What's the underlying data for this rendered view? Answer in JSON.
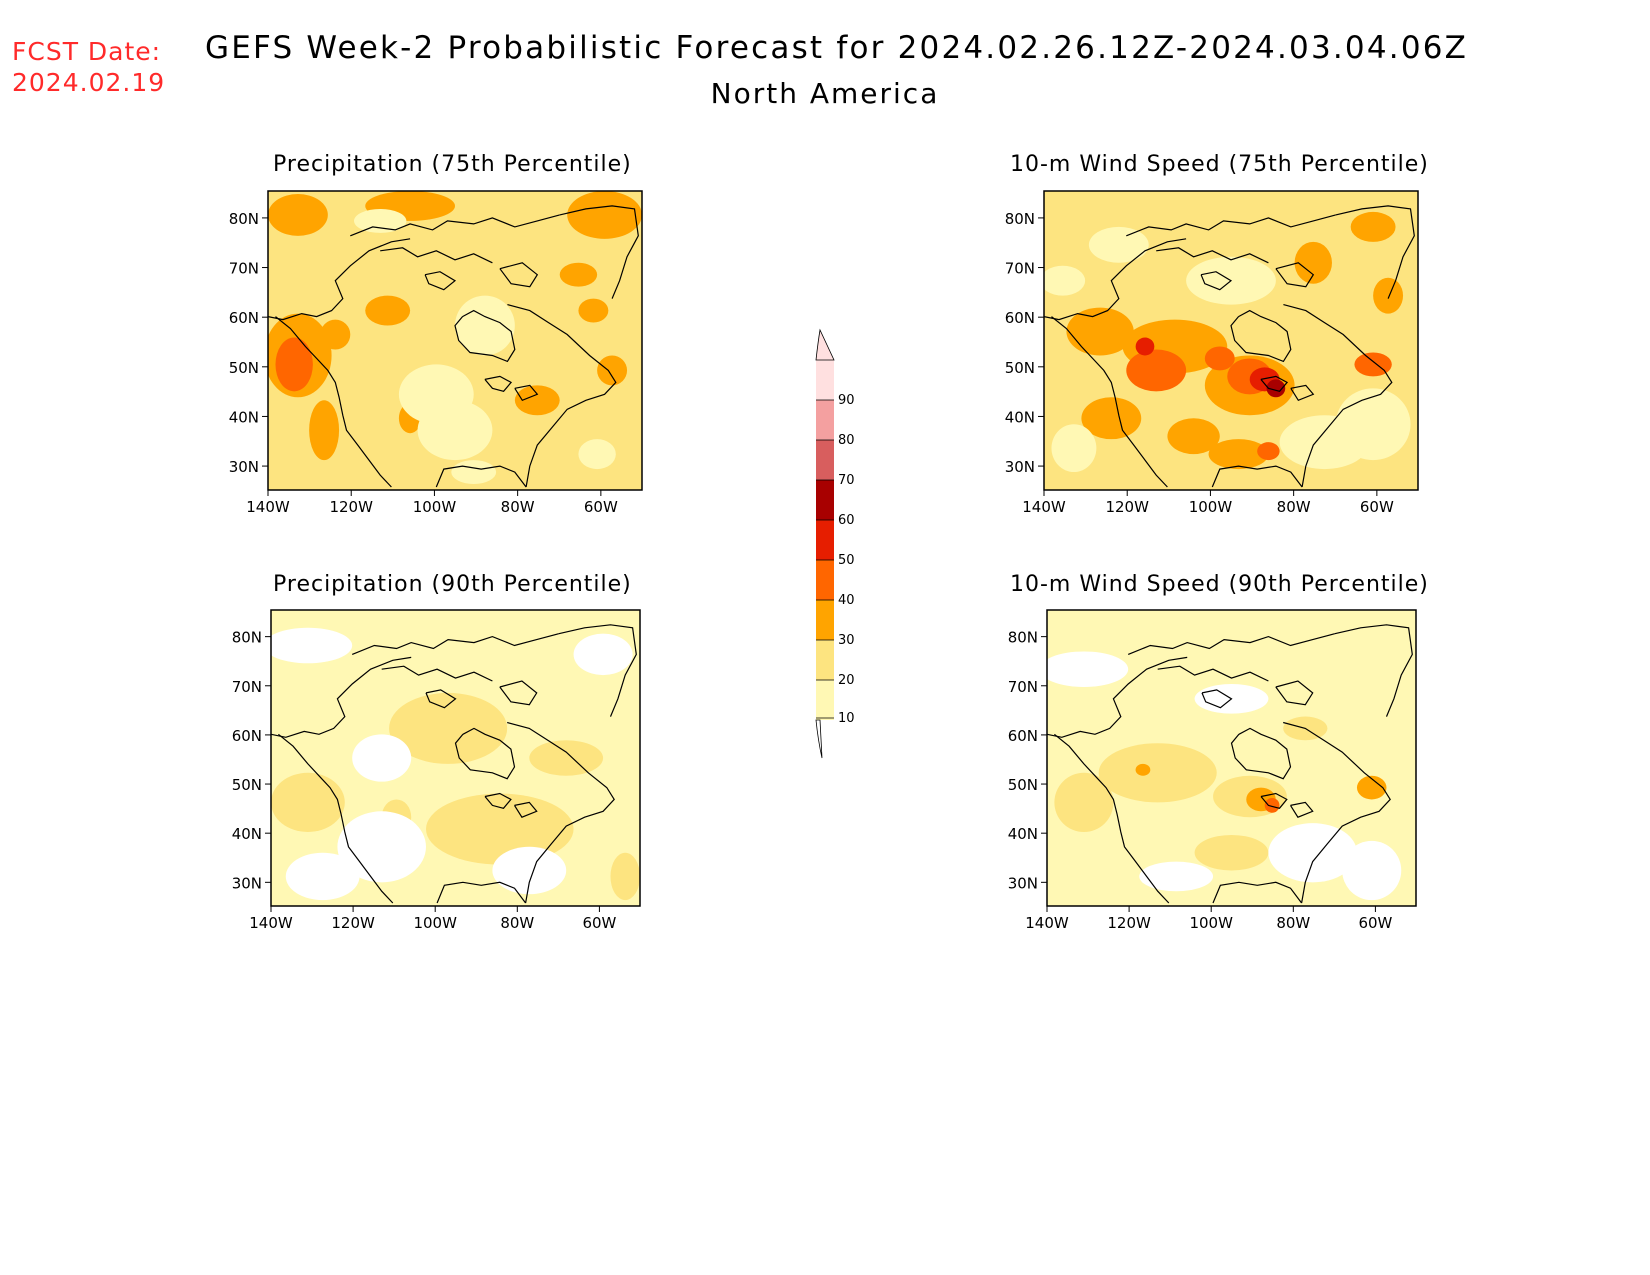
{
  "header": {
    "fcst_label": "FCST Date:",
    "fcst_date": "2024.02.19",
    "title": "GEFS Week-2 Probabilistic Forecast for 2024.02.26.12Z-2024.03.04.06Z",
    "region": "North America"
  },
  "colors": {
    "c10": "#fff8b4",
    "c20": "#fde480",
    "c30": "#ffa400",
    "c40": "#ff6600",
    "c50": "#e61e00",
    "c60": "#a80000",
    "c70": "#d85e5e",
    "c80": "#f4a0a0",
    "c90": "#ffe0e0",
    "fcst_text": "#ff2a2a"
  },
  "axes": {
    "lat_ticks": [
      "80N",
      "70N",
      "60N",
      "50N",
      "40N",
      "30N"
    ],
    "lon_ticks": [
      "140W",
      "120W",
      "100W",
      "80W",
      "60W"
    ]
  },
  "colorbar": {
    "levels": [
      "10",
      "20",
      "30",
      "40",
      "50",
      "60",
      "70",
      "80",
      "90"
    ]
  },
  "panels": [
    {
      "id": "precip75",
      "title": "Precipitation (75th Percentile)",
      "base": "c20"
    },
    {
      "id": "wind75",
      "title": "10-m Wind Speed (75th Percentile)",
      "base": "c20"
    },
    {
      "id": "precip90",
      "title": "Precipitation (90th Percentile)",
      "base": "c10"
    },
    {
      "id": "wind90",
      "title": "10-m Wind Speed (90th Percentile)",
      "base": "c10"
    }
  ]
}
